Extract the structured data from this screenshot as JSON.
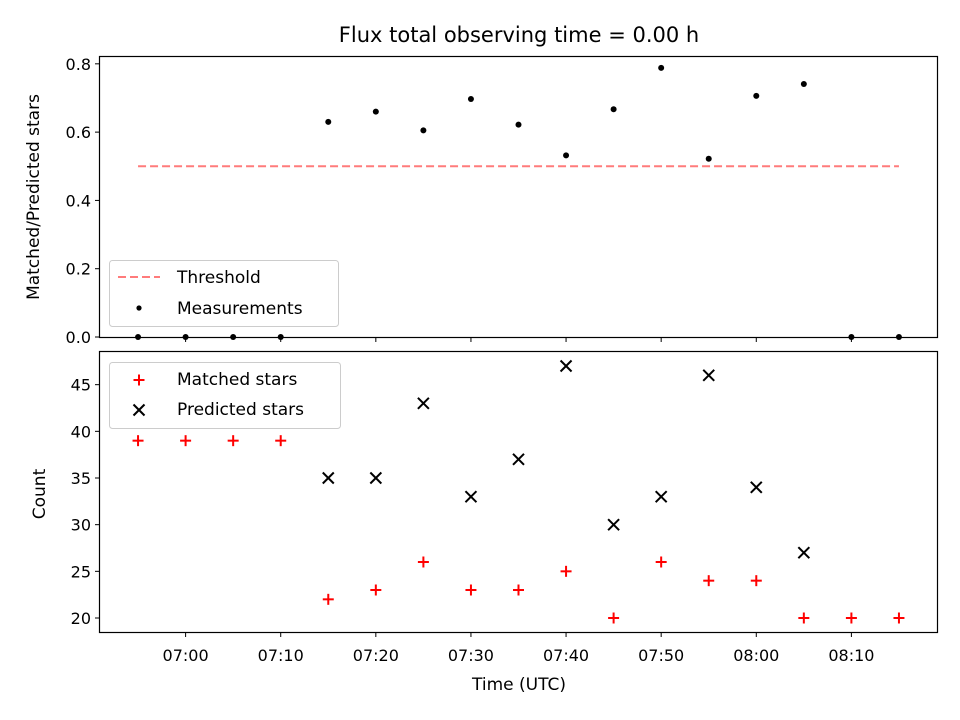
{
  "chart_data": [
    {
      "type": "scatter",
      "title": "Flux total observing time = 0.00 h",
      "xlabel": "",
      "ylabel": "Matched/Predicted stars",
      "ylim": [
        0,
        0.82
      ],
      "yticks": [
        0.0,
        0.2,
        0.4,
        0.6,
        0.8
      ],
      "ytick_labels": [
        "0.0",
        "0.2",
        "0.4",
        "0.6",
        "0.8"
      ],
      "legend_position": "lower-left",
      "series": [
        {
          "name": "Threshold",
          "kind": "line",
          "style": "dashed",
          "color": "#ff7b7b",
          "x": [
            "06:55",
            "08:15"
          ],
          "y": [
            0.5,
            0.5
          ]
        },
        {
          "name": "Measurements",
          "kind": "scatter",
          "marker": "dot",
          "color": "#000000",
          "x": [
            "06:55",
            "07:00",
            "07:05",
            "07:10",
            "07:15",
            "07:20",
            "07:25",
            "07:30",
            "07:35",
            "07:40",
            "07:45",
            "07:50",
            "07:55",
            "08:00",
            "08:05",
            "08:10",
            "08:15"
          ],
          "y": [
            0.0,
            0.0,
            0.0,
            0.0,
            0.63,
            0.66,
            0.605,
            0.697,
            0.622,
            0.532,
            0.667,
            0.788,
            0.522,
            0.706,
            0.741,
            0.0,
            0.0
          ]
        }
      ]
    },
    {
      "type": "scatter",
      "title": "",
      "xlabel": "Time (UTC)",
      "ylabel": "Count",
      "ylim": [
        18.5,
        48.5
      ],
      "yticks": [
        20,
        25,
        30,
        35,
        40,
        45
      ],
      "ytick_labels": [
        "20",
        "25",
        "30",
        "35",
        "40",
        "45"
      ],
      "legend_position": "top-left",
      "series": [
        {
          "name": "Matched stars",
          "kind": "scatter",
          "marker": "plus",
          "color": "#ff0000",
          "x": [
            "06:55",
            "07:00",
            "07:05",
            "07:10",
            "07:15",
            "07:20",
            "07:25",
            "07:30",
            "07:35",
            "07:40",
            "07:45",
            "07:50",
            "07:55",
            "08:00",
            "08:05",
            "08:10",
            "08:15"
          ],
          "y": [
            39,
            39,
            39,
            39,
            22,
            23,
            26,
            23,
            23,
            25,
            20,
            26,
            24,
            24,
            20,
            20,
            20
          ]
        },
        {
          "name": "Predicted stars",
          "kind": "scatter",
          "marker": "x",
          "color": "#000000",
          "x": [
            "07:15",
            "07:20",
            "07:25",
            "07:30",
            "07:35",
            "07:40",
            "07:45",
            "07:50",
            "07:55",
            "08:00",
            "08:05"
          ],
          "y": [
            35,
            35,
            43,
            33,
            37,
            47,
            30,
            33,
            46,
            34,
            27
          ]
        }
      ]
    }
  ],
  "shared_x": {
    "range": [
      "06:51",
      "08:19"
    ],
    "ticks": [
      "07:00",
      "07:10",
      "07:20",
      "07:30",
      "07:40",
      "07:50",
      "08:00",
      "08:10"
    ],
    "tick_labels": [
      "07:00",
      "07:10",
      "07:20",
      "07:30",
      "07:40",
      "07:50",
      "08:00",
      "08:10"
    ]
  }
}
